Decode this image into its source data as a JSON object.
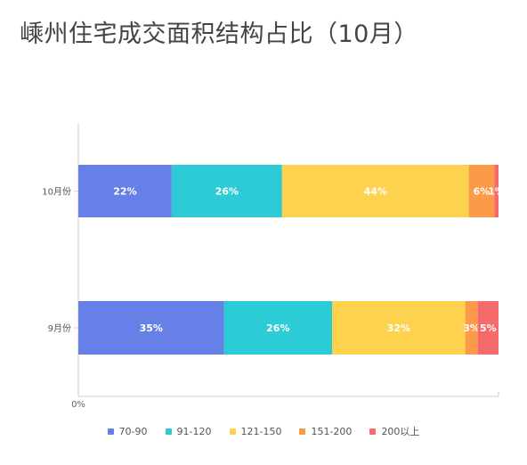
{
  "title": "嵊州住宅成交面积结构占比（10月）",
  "colors": {
    "70-90": "#6780e8",
    "91-120": "#2ccbd6",
    "121-150": "#fcd24f",
    "151-200": "#fb9a48",
    "200以上": "#f56a6a",
    "axis": "#cfcfcf",
    "label_text": "#ffffff"
  },
  "chart_data": {
    "type": "bar",
    "orientation": "horizontal",
    "stacked": true,
    "categories": [
      "10月份",
      "9月份"
    ],
    "series": [
      {
        "name": "70-90",
        "values": [
          22,
          35
        ],
        "labels": [
          "22%",
          "35%"
        ]
      },
      {
        "name": "91-120",
        "values": [
          26,
          26
        ],
        "labels": [
          "26%",
          "26%"
        ]
      },
      {
        "name": "121-150",
        "values": [
          44,
          32
        ],
        "labels": [
          "44%",
          "32%"
        ]
      },
      {
        "name": "151-200",
        "values": [
          6,
          3
        ],
        "labels": [
          "6%",
          "3%"
        ]
      },
      {
        "name": "200以上",
        "values": [
          1,
          5
        ],
        "labels": [
          "1%",
          "5%"
        ]
      }
    ],
    "xlim": [
      0,
      100
    ],
    "x_tick_labels": [
      "0%"
    ],
    "legend_position": "bottom"
  }
}
